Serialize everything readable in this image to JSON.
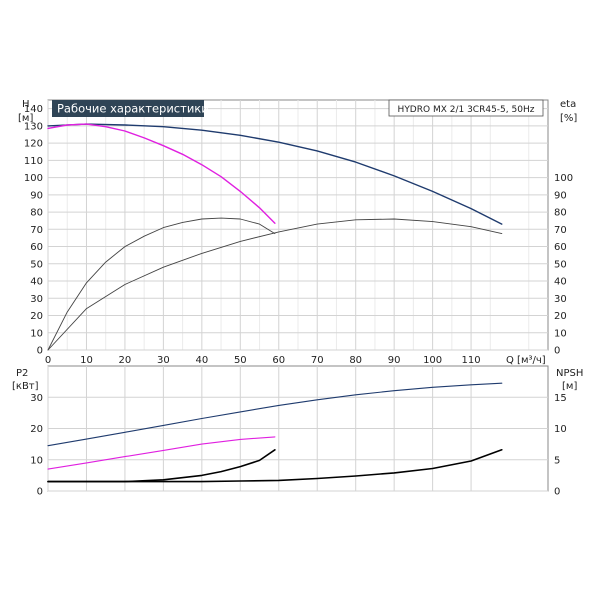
{
  "chart_data": [
    {
      "type": "line",
      "title": "Рабочие характеристики",
      "subtitle": "HYDRO MX 2/1 3CR45-5, 50Hz",
      "xlabel": "Q [м³/ч]",
      "ylabel_left": "H",
      "ylabel_left_unit": "[м]",
      "ylabel_right": "eta",
      "ylabel_right_unit": "[%]",
      "xlim": [
        0,
        130
      ],
      "ylim_left": [
        0,
        145
      ],
      "ylim_right": [
        0,
        145
      ],
      "x_ticks": [
        "0",
        "10",
        "20",
        "30",
        "40",
        "50",
        "60",
        "70",
        "80",
        "90",
        "100",
        "110"
      ],
      "y_ticks_left": [
        "0",
        "10",
        "20",
        "30",
        "40",
        "50",
        "60",
        "70",
        "80",
        "90",
        "100",
        "110",
        "120",
        "130",
        "140"
      ],
      "y_ticks_right": [
        "0",
        "10",
        "20",
        "30",
        "40",
        "50",
        "60",
        "70",
        "80",
        "90",
        "100"
      ],
      "grid": true,
      "series": [
        {
          "color": "#1f3b6e",
          "axis": "left",
          "x": [
            0,
            10,
            20,
            30,
            40,
            50,
            60,
            70,
            80,
            90,
            100,
            110,
            118
          ],
          "y": [
            130,
            131,
            130.5,
            129.5,
            127.5,
            124.5,
            120.5,
            115.5,
            109,
            101,
            92,
            82,
            73
          ]
        },
        {
          "color": "#e020e0",
          "axis": "left",
          "x": [
            0,
            5,
            10,
            15,
            20,
            25,
            30,
            35,
            40,
            45,
            50,
            55,
            59
          ],
          "y": [
            128.5,
            130.5,
            131,
            129.5,
            127,
            123,
            118.5,
            113.5,
            107.5,
            100.5,
            92,
            82.5,
            73.5
          ]
        },
        {
          "color": "#444444",
          "axis": "right",
          "x": [
            0,
            5,
            10,
            15,
            20,
            25,
            30,
            35,
            40,
            45,
            50,
            55,
            59
          ],
          "y": [
            0,
            22,
            39,
            51,
            60,
            66,
            71,
            74,
            76,
            76.5,
            76,
            73,
            67.5
          ]
        },
        {
          "color": "#444444",
          "axis": "right",
          "x": [
            0,
            10,
            20,
            30,
            40,
            50,
            60,
            70,
            80,
            90,
            100,
            110,
            118
          ],
          "y": [
            0,
            24,
            38,
            48,
            56,
            63,
            68.5,
            73,
            75.5,
            76,
            74.5,
            71.5,
            67.5
          ]
        }
      ]
    },
    {
      "type": "line",
      "ylabel_left": "P2",
      "ylabel_left_unit": "[кВт]",
      "ylabel_right": "NPSH",
      "ylabel_right_unit": "[м]",
      "xlim": [
        0,
        130
      ],
      "ylim_left": [
        0,
        40
      ],
      "ylim_right": [
        0,
        20
      ],
      "y_ticks_left": [
        "0",
        "10",
        "20",
        "30"
      ],
      "y_ticks_right": [
        "0",
        "5",
        "10",
        "15"
      ],
      "grid": true,
      "series": [
        {
          "color": "#1f3b6e",
          "axis": "left",
          "x": [
            0,
            10,
            20,
            30,
            40,
            50,
            60,
            70,
            80,
            90,
            100,
            110,
            118
          ],
          "y": [
            14.5,
            16.6,
            18.8,
            21,
            23.2,
            25.3,
            27.4,
            29.2,
            30.8,
            32.1,
            33.2,
            34,
            34.5
          ]
        },
        {
          "color": "#e020e0",
          "axis": "left",
          "x": [
            0,
            10,
            20,
            30,
            40,
            50,
            59
          ],
          "y": [
            7,
            9,
            11,
            13,
            15,
            16.5,
            17.3
          ]
        },
        {
          "color": "#000000",
          "axis": "right",
          "x": [
            0,
            10,
            20,
            30,
            40,
            45,
            50,
            55,
            59
          ],
          "y": [
            1.5,
            1.5,
            1.5,
            1.8,
            2.5,
            3.1,
            3.9,
            4.9,
            6.6
          ]
        },
        {
          "color": "#000000",
          "axis": "right",
          "x": [
            0,
            20,
            40,
            50,
            60,
            70,
            80,
            90,
            100,
            110,
            118
          ],
          "y": [
            1.5,
            1.5,
            1.5,
            1.6,
            1.7,
            2,
            2.4,
            2.9,
            3.6,
            4.8,
            6.6
          ]
        }
      ]
    }
  ]
}
